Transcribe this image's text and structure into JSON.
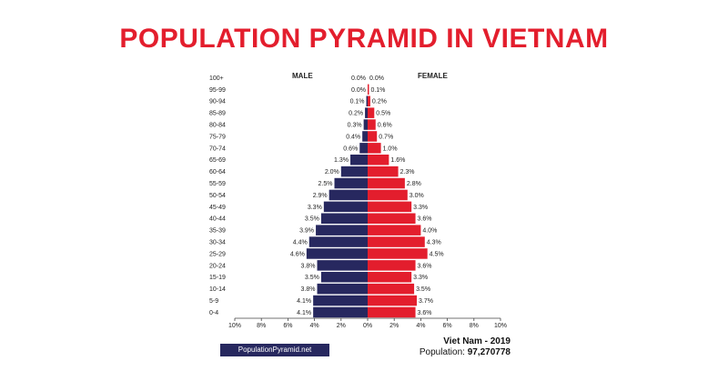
{
  "title": "POPULATION PYRAMID IN VIETNAM",
  "brand": "PopulationPyramid.net",
  "caption": {
    "country_year": "Viet Nam - 2019",
    "population_label": "Population:",
    "population_value": "97,270778"
  },
  "colors": {
    "male": "#27285f",
    "female": "#e31e2d",
    "title": "#e31e2d"
  },
  "chart_data": {
    "type": "bar",
    "orientation": "horizontal-diverging",
    "series_labels": {
      "male": "MALE",
      "female": "FEMALE"
    },
    "xlim": [
      -10,
      10
    ],
    "x_ticks": [
      -10,
      -8,
      -6,
      -4,
      -2,
      0,
      2,
      4,
      6,
      8,
      10
    ],
    "x_tick_labels": [
      "10%",
      "8%",
      "6%",
      "4%",
      "2%",
      "0%",
      "2%",
      "4%",
      "6%",
      "8%",
      "10%"
    ],
    "categories": [
      "100+",
      "95-99",
      "90-94",
      "85-89",
      "80-84",
      "75-79",
      "70-74",
      "65-69",
      "60-64",
      "55-59",
      "50-54",
      "45-49",
      "40-44",
      "35-39",
      "30-34",
      "25-29",
      "20-24",
      "15-19",
      "10-14",
      "5-9",
      "0-4"
    ],
    "male": [
      0.0,
      0.0,
      0.1,
      0.2,
      0.3,
      0.4,
      0.6,
      1.3,
      2.0,
      2.5,
      2.9,
      3.3,
      3.5,
      3.9,
      4.4,
      4.6,
      3.8,
      3.5,
      3.8,
      4.1,
      4.1
    ],
    "female": [
      0.0,
      0.1,
      0.2,
      0.5,
      0.6,
      0.7,
      1.0,
      1.6,
      2.3,
      2.8,
      3.0,
      3.3,
      3.6,
      4.0,
      4.3,
      4.5,
      3.6,
      3.3,
      3.5,
      3.7,
      3.6
    ],
    "male_labels": [
      "0.0%",
      "0.0%",
      "0.1%",
      "0.2%",
      "0.3%",
      "0.4%",
      "0.6%",
      "1.3%",
      "2.0%",
      "2.5%",
      "2.9%",
      "3.3%",
      "3.5%",
      "3.9%",
      "4.4%",
      "4.6%",
      "3.8%",
      "3.5%",
      "3.8%",
      "4.1%",
      "4.1%"
    ],
    "female_labels": [
      "0.0%",
      "0.1%",
      "0.2%",
      "0.5%",
      "0.6%",
      "0.7%",
      "1.0%",
      "1.6%",
      "2.3%",
      "2.8%",
      "3.0%",
      "3.3%",
      "3.6%",
      "4.0%",
      "4.3%",
      "4.5%",
      "3.6%",
      "3.3%",
      "3.5%",
      "3.7%",
      "3.6%"
    ]
  }
}
